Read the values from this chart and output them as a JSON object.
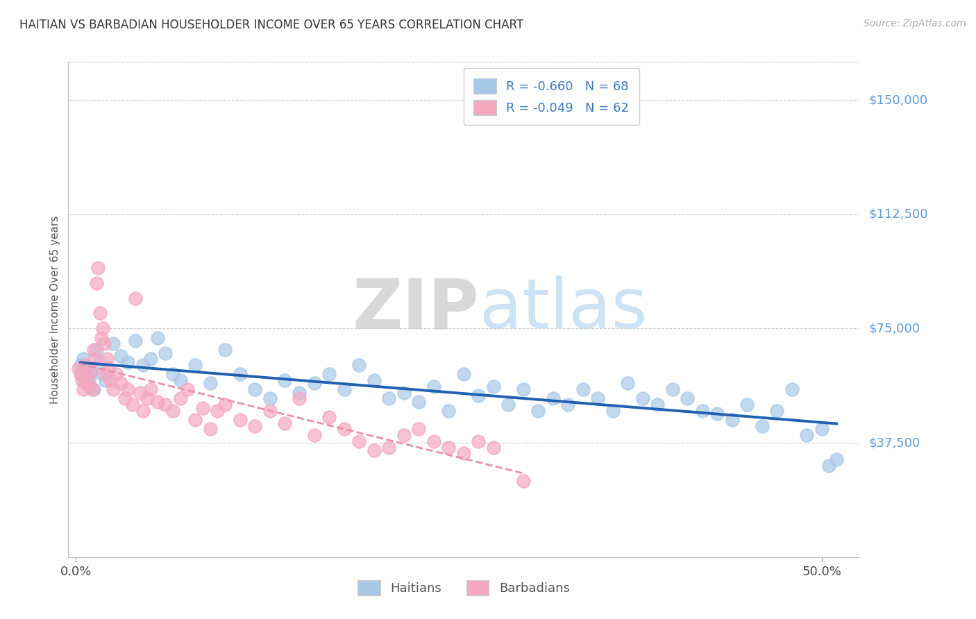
{
  "title": "HAITIAN VS BARBADIAN HOUSEHOLDER INCOME OVER 65 YEARS CORRELATION CHART",
  "source": "Source: ZipAtlas.com",
  "ylabel": "Householder Income Over 65 years",
  "ytick_labels": [
    "$37,500",
    "$75,000",
    "$112,500",
    "$150,000"
  ],
  "ytick_values": [
    37500,
    75000,
    112500,
    150000
  ],
  "ymin": 0,
  "ymax": 162500,
  "xmin": -0.005,
  "xmax": 0.525,
  "watermark_zip": "ZIP",
  "watermark_atlas": "atlas",
  "legend_haitian": "R = -0.660   N = 68",
  "legend_barbadian": "R = -0.049   N = 62",
  "haitian_color": "#a8c8e8",
  "barbadian_color": "#f4a8c0",
  "haitian_line_color": "#2060b0",
  "barbadian_line_color": "#e890a8",
  "legend_text_color": "#3a7abf",
  "haitian_r": -0.66,
  "haitian_n": 68,
  "barbadian_r": -0.049,
  "barbadian_n": 62,
  "haitian_x": [
    0.003,
    0.004,
    0.005,
    0.006,
    0.007,
    0.008,
    0.009,
    0.01,
    0.012,
    0.014,
    0.016,
    0.018,
    0.02,
    0.025,
    0.03,
    0.035,
    0.04,
    0.045,
    0.05,
    0.055,
    0.06,
    0.065,
    0.07,
    0.08,
    0.09,
    0.1,
    0.11,
    0.12,
    0.13,
    0.14,
    0.15,
    0.16,
    0.17,
    0.18,
    0.19,
    0.2,
    0.21,
    0.22,
    0.23,
    0.24,
    0.25,
    0.26,
    0.27,
    0.28,
    0.29,
    0.3,
    0.31,
    0.32,
    0.33,
    0.34,
    0.35,
    0.36,
    0.37,
    0.38,
    0.39,
    0.4,
    0.41,
    0.42,
    0.43,
    0.44,
    0.45,
    0.46,
    0.47,
    0.48,
    0.49,
    0.5,
    0.505,
    0.51
  ],
  "haitian_y": [
    63000,
    60000,
    65000,
    58000,
    62000,
    57000,
    59000,
    61000,
    55000,
    68000,
    64000,
    60000,
    58000,
    70000,
    66000,
    64000,
    71000,
    63000,
    65000,
    72000,
    67000,
    60000,
    58000,
    63000,
    57000,
    68000,
    60000,
    55000,
    52000,
    58000,
    54000,
    57000,
    60000,
    55000,
    63000,
    58000,
    52000,
    54000,
    51000,
    56000,
    48000,
    60000,
    53000,
    56000,
    50000,
    55000,
    48000,
    52000,
    50000,
    55000,
    52000,
    48000,
    57000,
    52000,
    50000,
    55000,
    52000,
    48000,
    47000,
    45000,
    50000,
    43000,
    48000,
    55000,
    40000,
    42000,
    30000,
    32000
  ],
  "barbadian_x": [
    0.002,
    0.003,
    0.004,
    0.005,
    0.006,
    0.007,
    0.008,
    0.009,
    0.01,
    0.011,
    0.012,
    0.013,
    0.014,
    0.015,
    0.016,
    0.017,
    0.018,
    0.019,
    0.02,
    0.021,
    0.022,
    0.023,
    0.025,
    0.027,
    0.03,
    0.033,
    0.035,
    0.038,
    0.04,
    0.043,
    0.045,
    0.048,
    0.05,
    0.055,
    0.06,
    0.065,
    0.07,
    0.075,
    0.08,
    0.085,
    0.09,
    0.095,
    0.1,
    0.11,
    0.12,
    0.13,
    0.14,
    0.15,
    0.16,
    0.17,
    0.18,
    0.19,
    0.2,
    0.21,
    0.22,
    0.23,
    0.24,
    0.25,
    0.26,
    0.27,
    0.28,
    0.3
  ],
  "barbadian_y": [
    62000,
    60000,
    58000,
    55000,
    63000,
    57000,
    59000,
    56000,
    61000,
    55000,
    68000,
    65000,
    90000,
    95000,
    80000,
    72000,
    75000,
    70000,
    60000,
    65000,
    62000,
    58000,
    55000,
    60000,
    57000,
    52000,
    55000,
    50000,
    85000,
    54000,
    48000,
    52000,
    55000,
    51000,
    50000,
    48000,
    52000,
    55000,
    45000,
    49000,
    42000,
    48000,
    50000,
    45000,
    43000,
    48000,
    44000,
    52000,
    40000,
    46000,
    42000,
    38000,
    35000,
    36000,
    40000,
    42000,
    38000,
    36000,
    34000,
    38000,
    36000,
    25000
  ]
}
